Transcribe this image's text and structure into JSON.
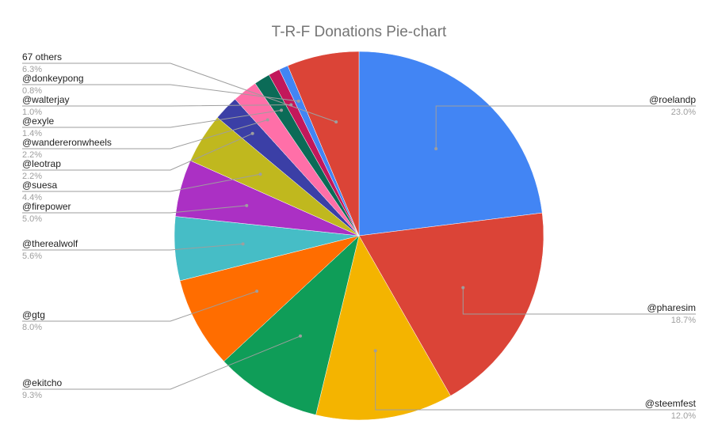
{
  "chart_data": {
    "type": "pie",
    "title": "T-R-F Donations Pie-chart",
    "slices": [
      {
        "name": "@roelandp",
        "value": 23.0,
        "label": "23.0%",
        "color": "#4285f4"
      },
      {
        "name": "@pharesim",
        "value": 18.7,
        "label": "18.7%",
        "color": "#db4437"
      },
      {
        "name": "@steemfest",
        "value": 12.0,
        "label": "12.0%",
        "color": "#f4b400"
      },
      {
        "name": "@ekitcho",
        "value": 9.3,
        "label": "9.3%",
        "color": "#0f9d58"
      },
      {
        "name": "@gtg",
        "value": 8.0,
        "label": "8.0%",
        "color": "#ff6d00"
      },
      {
        "name": "@therealwolf",
        "value": 5.6,
        "label": "5.6%",
        "color": "#46bdc6"
      },
      {
        "name": "@firepower",
        "value": 5.0,
        "label": "5.0%",
        "color": "#ab30c4"
      },
      {
        "name": "@suesa",
        "value": 4.4,
        "label": "4.4%",
        "color": "#c0b81e"
      },
      {
        "name": "@leotrap",
        "value": 2.2,
        "label": "2.2%",
        "color": "#3b3fa6"
      },
      {
        "name": "@wandereronwheels",
        "value": 2.2,
        "label": "2.2%",
        "color": "#ff6fa8"
      },
      {
        "name": "@exyle",
        "value": 1.4,
        "label": "1.4%",
        "color": "#0b6b57"
      },
      {
        "name": "@walterjay",
        "value": 1.0,
        "label": "1.0%",
        "color": "#c2185b"
      },
      {
        "name": "@donkeypong",
        "value": 0.8,
        "label": "0.8%",
        "color": "#4285f4"
      },
      {
        "name": "67 others",
        "value": 6.3,
        "label": "6.3%",
        "color": "#db4437"
      }
    ],
    "legend": "labels with leader lines"
  }
}
